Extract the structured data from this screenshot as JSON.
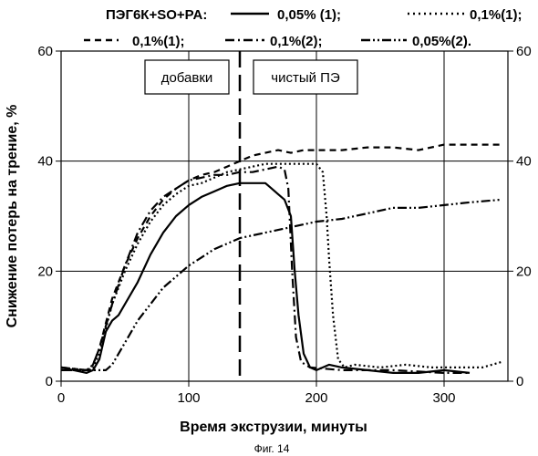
{
  "chart_data": {
    "type": "line",
    "legend_title": "ПЭГ6К+SO+PA:",
    "xlabel": "Время экструзии, минуты",
    "ylabel": "Снижение потерь на трение, %",
    "xlim": [
      0,
      350
    ],
    "ylim": [
      0,
      60
    ],
    "x_ticks": [
      0,
      100,
      200,
      300
    ],
    "y_ticks": [
      0,
      20,
      40,
      60
    ],
    "grid": true,
    "legend_placement": "top",
    "right_axis": true,
    "annotations": [
      {
        "label": "добавки",
        "x": 140,
        "y": 55
      },
      {
        "label": "чистый ПЭ",
        "x": 240,
        "y": 55
      }
    ],
    "vertical_marker_x": 140,
    "caption": "Фиг. 14",
    "series": [
      {
        "name": "0,05% (1);",
        "style": "solid",
        "points": [
          [
            0,
            2.5
          ],
          [
            10,
            2
          ],
          [
            20,
            1.5
          ],
          [
            25,
            2
          ],
          [
            30,
            4
          ],
          [
            35,
            9
          ],
          [
            40,
            11
          ],
          [
            45,
            12
          ],
          [
            50,
            14
          ],
          [
            60,
            18
          ],
          [
            70,
            23
          ],
          [
            80,
            27
          ],
          [
            90,
            30
          ],
          [
            100,
            32
          ],
          [
            110,
            33.5
          ],
          [
            120,
            34.5
          ],
          [
            130,
            35.5
          ],
          [
            140,
            36
          ],
          [
            150,
            36
          ],
          [
            160,
            36
          ],
          [
            165,
            35
          ],
          [
            170,
            34
          ],
          [
            175,
            33
          ],
          [
            180,
            30
          ],
          [
            183,
            20
          ],
          [
            186,
            12
          ],
          [
            190,
            5
          ],
          [
            195,
            2.5
          ],
          [
            200,
            2
          ],
          [
            210,
            3
          ],
          [
            220,
            2.5
          ],
          [
            240,
            2
          ],
          [
            260,
            1.5
          ],
          [
            280,
            1.5
          ],
          [
            300,
            2
          ],
          [
            320,
            1.5
          ]
        ]
      },
      {
        "name": "0,1%(1);",
        "style": "dotted",
        "points": [
          [
            0,
            2
          ],
          [
            20,
            2
          ],
          [
            25,
            2.5
          ],
          [
            30,
            5
          ],
          [
            40,
            14
          ],
          [
            50,
            20
          ],
          [
            60,
            25
          ],
          [
            70,
            29
          ],
          [
            80,
            32
          ],
          [
            90,
            34
          ],
          [
            100,
            35.5
          ],
          [
            110,
            36
          ],
          [
            120,
            37
          ],
          [
            130,
            38
          ],
          [
            140,
            38.5
          ],
          [
            150,
            39
          ],
          [
            160,
            39.5
          ],
          [
            170,
            39.5
          ],
          [
            180,
            39.5
          ],
          [
            190,
            39.5
          ],
          [
            200,
            39.5
          ],
          [
            205,
            38
          ],
          [
            208,
            30
          ],
          [
            210,
            22
          ],
          [
            213,
            12
          ],
          [
            217,
            4
          ],
          [
            222,
            2.5
          ],
          [
            230,
            3
          ],
          [
            250,
            2.5
          ],
          [
            270,
            3
          ],
          [
            290,
            2.5
          ],
          [
            310,
            2.5
          ],
          [
            330,
            2.5
          ],
          [
            345,
            3.5
          ]
        ]
      },
      {
        "name": "0,1%(1);",
        "style": "dashed",
        "points": [
          [
            0,
            2.5
          ],
          [
            20,
            2
          ],
          [
            25,
            3
          ],
          [
            30,
            6
          ],
          [
            40,
            15
          ],
          [
            50,
            21
          ],
          [
            60,
            26
          ],
          [
            70,
            30
          ],
          [
            80,
            33
          ],
          [
            90,
            35
          ],
          [
            100,
            36.5
          ],
          [
            110,
            37.5
          ],
          [
            120,
            38
          ],
          [
            130,
            39
          ],
          [
            140,
            40
          ],
          [
            150,
            41
          ],
          [
            160,
            41.5
          ],
          [
            170,
            42
          ],
          [
            180,
            41.5
          ],
          [
            190,
            42
          ],
          [
            200,
            42
          ],
          [
            210,
            42
          ],
          [
            220,
            42
          ],
          [
            240,
            42.5
          ],
          [
            260,
            42.5
          ],
          [
            280,
            42
          ],
          [
            300,
            43
          ],
          [
            320,
            43
          ],
          [
            345,
            43
          ]
        ]
      },
      {
        "name": "0,1%(2);",
        "style": "dashdot",
        "points": [
          [
            0,
            2.5
          ],
          [
            20,
            2
          ],
          [
            25,
            3
          ],
          [
            30,
            6
          ],
          [
            40,
            14
          ],
          [
            50,
            21
          ],
          [
            60,
            27
          ],
          [
            70,
            31
          ],
          [
            80,
            33.5
          ],
          [
            90,
            35
          ],
          [
            100,
            36.5
          ],
          [
            110,
            37
          ],
          [
            120,
            37.5
          ],
          [
            130,
            37.5
          ],
          [
            140,
            38
          ],
          [
            150,
            38
          ],
          [
            160,
            38.5
          ],
          [
            170,
            39
          ],
          [
            175,
            38.5
          ],
          [
            178,
            35
          ],
          [
            181,
            20
          ],
          [
            184,
            8
          ],
          [
            188,
            3.5
          ],
          [
            195,
            2.5
          ],
          [
            220,
            2
          ],
          [
            260,
            2
          ],
          [
            300,
            1.5
          ],
          [
            320,
            1.5
          ]
        ]
      },
      {
        "name": "0,05%(2).",
        "style": "dashdotdot",
        "points": [
          [
            0,
            2
          ],
          [
            20,
            2
          ],
          [
            30,
            2
          ],
          [
            35,
            2
          ],
          [
            40,
            3
          ],
          [
            50,
            7
          ],
          [
            60,
            11
          ],
          [
            70,
            14
          ],
          [
            80,
            17
          ],
          [
            90,
            19
          ],
          [
            100,
            21
          ],
          [
            110,
            22.5
          ],
          [
            120,
            24
          ],
          [
            130,
            25
          ],
          [
            140,
            26
          ],
          [
            150,
            26.5
          ],
          [
            160,
            27
          ],
          [
            170,
            27.5
          ],
          [
            180,
            28
          ],
          [
            200,
            29
          ],
          [
            220,
            29.5
          ],
          [
            240,
            30.5
          ],
          [
            260,
            31.5
          ],
          [
            280,
            31.5
          ],
          [
            300,
            32
          ],
          [
            320,
            32.5
          ],
          [
            345,
            33
          ]
        ]
      }
    ]
  }
}
